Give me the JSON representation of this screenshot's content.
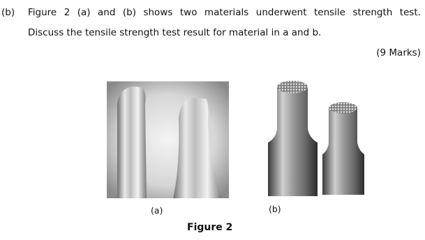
{
  "question": {
    "label": "(b)",
    "lines": [
      "Figure 2 (a) and (b) shows two materials underwent tensile strength test.",
      "Discuss the tensile strength test result for material in a and b."
    ],
    "marks": "(9 Marks)"
  },
  "figure": {
    "panels": [
      {
        "label": "(a)"
      },
      {
        "label": "(b)"
      }
    ],
    "caption": "Figure 2"
  }
}
